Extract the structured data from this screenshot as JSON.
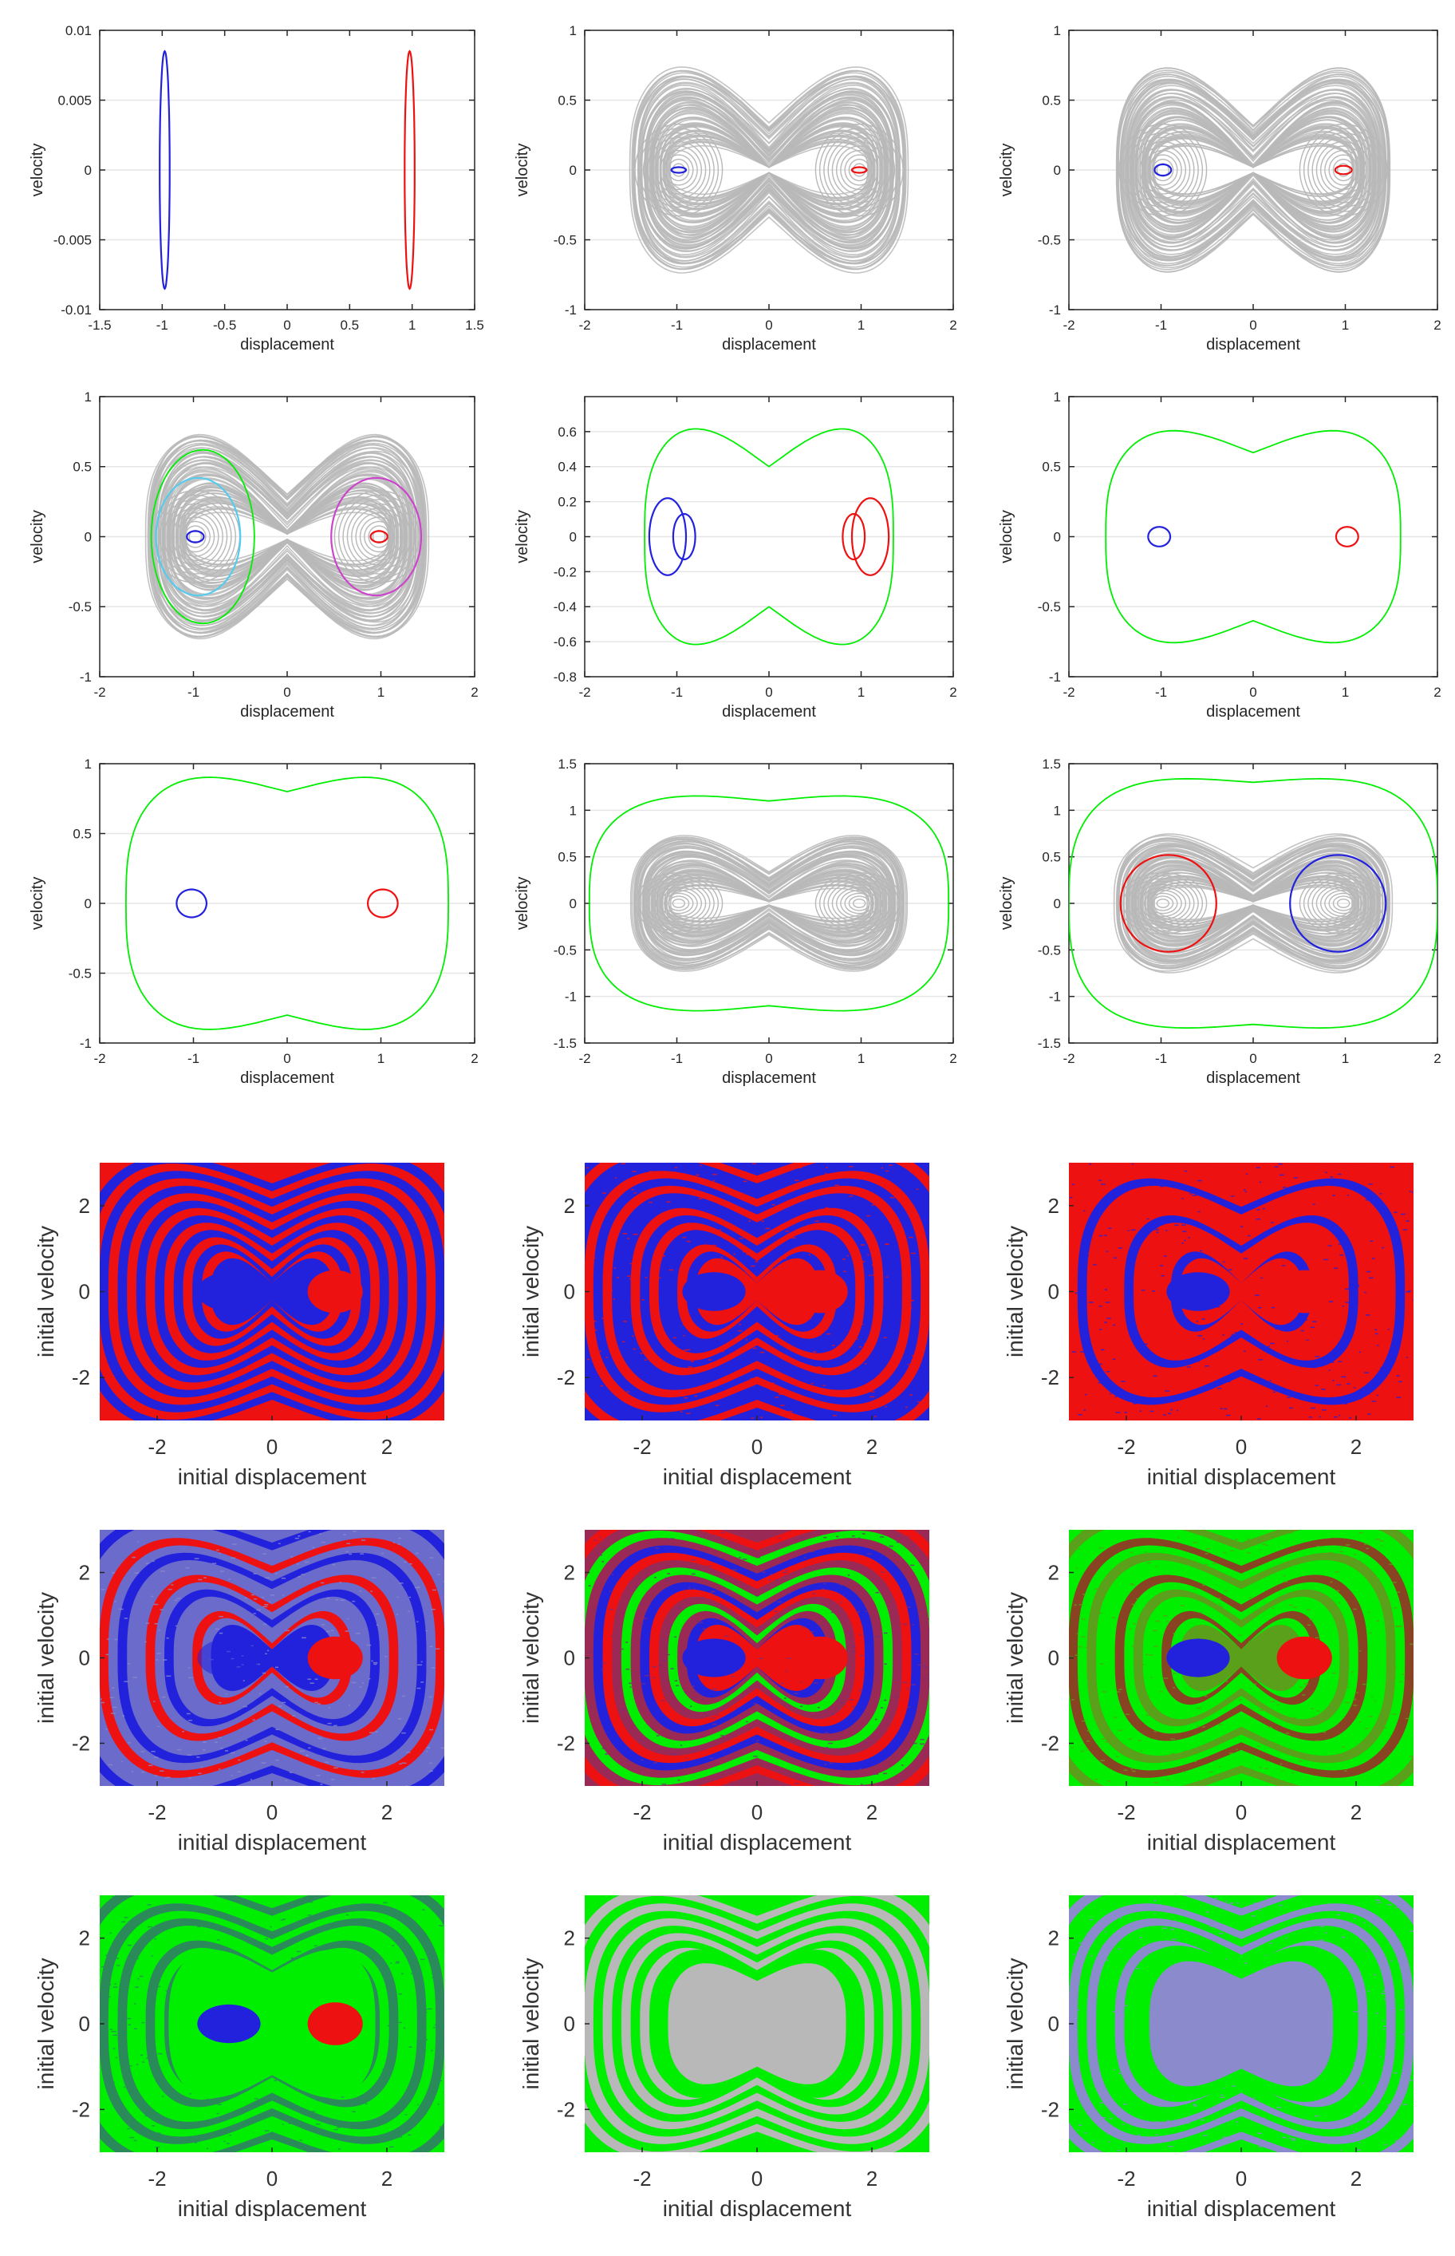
{
  "colors": {
    "blue": "#2222dd",
    "red": "#ee1111",
    "green": "#00ee00",
    "gray": "#b8b8b8",
    "cyan": "#55ccee",
    "magenta": "#cc44cc",
    "axis": "#262626",
    "grid": "#e6e6e6"
  },
  "chart_data": [
    {
      "type": "line",
      "title": "",
      "xlabel": "displacement",
      "ylabel": "velocity",
      "xlim": [
        -1.5,
        1.5
      ],
      "ylim": [
        -0.01,
        0.01
      ],
      "xticks": [
        "-1.5",
        "-1",
        "-0.5",
        "0",
        "0.5",
        "1",
        "1.5"
      ],
      "yticks": [
        "-0.01",
        "-0.005",
        "0",
        "0.005",
        "0.01"
      ],
      "grid": true,
      "series": [
        {
          "color": "blue",
          "kind": "ellipse",
          "center": [
            -0.98,
            0
          ],
          "radius": [
            0.04,
            0.0085
          ]
        },
        {
          "color": "red",
          "kind": "ellipse",
          "center": [
            0.98,
            0
          ],
          "radius": [
            0.04,
            0.0085
          ]
        }
      ]
    },
    {
      "type": "line",
      "title": "",
      "xlabel": "displacement",
      "ylabel": "velocity",
      "xlim": [
        -2,
        2
      ],
      "ylim": [
        -1,
        1
      ],
      "xticks": [
        "-2",
        "-1",
        "0",
        "1",
        "2"
      ],
      "yticks": [
        "-1",
        "-0.5",
        "0",
        "0.5",
        "1"
      ],
      "grid": true,
      "chaos_cloud": true,
      "series": [
        {
          "color": "blue",
          "kind": "ellipse",
          "center": [
            -0.98,
            0
          ],
          "radius": [
            0.08,
            0.02
          ]
        },
        {
          "color": "red",
          "kind": "ellipse",
          "center": [
            0.98,
            0
          ],
          "radius": [
            0.08,
            0.02
          ]
        }
      ]
    },
    {
      "type": "line",
      "title": "",
      "xlabel": "displacement",
      "ylabel": "velocity",
      "xlim": [
        -2,
        2
      ],
      "ylim": [
        -1,
        1
      ],
      "xticks": [
        "-2",
        "-1",
        "0",
        "1",
        "2"
      ],
      "yticks": [
        "-1",
        "-0.5",
        "0",
        "0.5",
        "1"
      ],
      "grid": true,
      "chaos_cloud": true,
      "series": [
        {
          "color": "blue",
          "kind": "ellipse",
          "center": [
            -0.98,
            0
          ],
          "radius": [
            0.09,
            0.04
          ]
        },
        {
          "color": "red",
          "kind": "ellipse",
          "center": [
            0.98,
            0
          ],
          "radius": [
            0.09,
            0.03
          ]
        }
      ]
    },
    {
      "type": "line",
      "title": "",
      "xlabel": "displacement",
      "ylabel": "velocity",
      "xlim": [
        -2,
        2
      ],
      "ylim": [
        -1,
        1
      ],
      "xticks": [
        "-2",
        "-1",
        "0",
        "1",
        "2"
      ],
      "yticks": [
        "-1",
        "-0.5",
        "0",
        "0.5",
        "1"
      ],
      "grid": true,
      "chaos_cloud": true,
      "series": [
        {
          "color": "cyan",
          "kind": "ellipse",
          "center": [
            -0.95,
            0
          ],
          "radius": [
            0.45,
            0.42
          ]
        },
        {
          "color": "green",
          "kind": "ellipse",
          "center": [
            -0.9,
            0
          ],
          "radius": [
            0.55,
            0.62
          ]
        },
        {
          "color": "magenta",
          "kind": "ellipse",
          "center": [
            0.95,
            0
          ],
          "radius": [
            0.48,
            0.42
          ]
        },
        {
          "color": "blue",
          "kind": "ellipse",
          "center": [
            -0.98,
            0
          ],
          "radius": [
            0.09,
            0.04
          ]
        },
        {
          "color": "red",
          "kind": "ellipse",
          "center": [
            0.98,
            0
          ],
          "radius": [
            0.09,
            0.04
          ]
        }
      ]
    },
    {
      "type": "line",
      "title": "",
      "xlabel": "displacement",
      "ylabel": "velocity",
      "xlim": [
        -2,
        2
      ],
      "ylim": [
        -0.8,
        0.8
      ],
      "xticks": [
        "-2",
        "-1",
        "0",
        "1",
        "2"
      ],
      "yticks": [
        "-0.8",
        "-0.6",
        "-0.4",
        "-0.2",
        "0",
        "0.2",
        "0.4",
        "0.6"
      ],
      "grid": true,
      "series": [
        {
          "color": "green",
          "kind": "peanut",
          "xmax": 1.35,
          "vmax": 0.68,
          "vmid": 0.4
        },
        {
          "color": "blue",
          "kind": "ellipse",
          "center": [
            -1.1,
            0
          ],
          "radius": [
            0.2,
            0.22
          ]
        },
        {
          "color": "blue",
          "kind": "ellipse",
          "center": [
            -0.92,
            0
          ],
          "radius": [
            0.12,
            0.13
          ]
        },
        {
          "color": "red",
          "kind": "ellipse",
          "center": [
            1.1,
            0
          ],
          "radius": [
            0.2,
            0.22
          ]
        },
        {
          "color": "red",
          "kind": "ellipse",
          "center": [
            0.92,
            0
          ],
          "radius": [
            0.12,
            0.13
          ]
        }
      ]
    },
    {
      "type": "line",
      "title": "",
      "xlabel": "displacement",
      "ylabel": "velocity",
      "xlim": [
        -2,
        2
      ],
      "ylim": [
        -1,
        1
      ],
      "xticks": [
        "-2",
        "-1",
        "0",
        "1",
        "2"
      ],
      "yticks": [
        "-1",
        "-0.5",
        "0",
        "0.5",
        "1"
      ],
      "grid": true,
      "series": [
        {
          "color": "green",
          "kind": "peanut",
          "xmax": 1.6,
          "vmax": 0.82,
          "vmid": 0.6
        },
        {
          "color": "blue",
          "kind": "ellipse",
          "center": [
            -1.02,
            0
          ],
          "radius": [
            0.12,
            0.07
          ]
        },
        {
          "color": "red",
          "kind": "ellipse",
          "center": [
            1.02,
            0
          ],
          "radius": [
            0.12,
            0.07
          ]
        }
      ]
    },
    {
      "type": "line",
      "title": "",
      "xlabel": "displacement",
      "ylabel": "velocity",
      "xlim": [
        -2,
        2
      ],
      "ylim": [
        -1,
        1
      ],
      "xticks": [
        "-2",
        "-1",
        "0",
        "1",
        "2"
      ],
      "yticks": [
        "-1",
        "-0.5",
        "0",
        "0.5",
        "1"
      ],
      "grid": true,
      "series": [
        {
          "color": "green",
          "kind": "peanut",
          "xmax": 1.72,
          "vmax": 0.96,
          "vmid": 0.8
        },
        {
          "color": "blue",
          "kind": "ellipse",
          "center": [
            -1.02,
            0
          ],
          "radius": [
            0.16,
            0.1
          ]
        },
        {
          "color": "red",
          "kind": "ellipse",
          "center": [
            1.02,
            0
          ],
          "radius": [
            0.16,
            0.1
          ]
        }
      ]
    },
    {
      "type": "line",
      "title": "",
      "xlabel": "displacement",
      "ylabel": "velocity",
      "xlim": [
        -2,
        2
      ],
      "ylim": [
        -1.5,
        1.5
      ],
      "xticks": [
        "-2",
        "-1",
        "0",
        "1",
        "2"
      ],
      "yticks": [
        "-1.5",
        "-1",
        "-0.5",
        "0",
        "0.5",
        "1",
        "1.5"
      ],
      "grid": true,
      "chaos_cloud": true,
      "series": [
        {
          "color": "green",
          "kind": "peanut",
          "xmax": 1.95,
          "vmax": 1.2,
          "vmid": 1.1
        }
      ]
    },
    {
      "type": "line",
      "title": "",
      "xlabel": "displacement",
      "ylabel": "velocity",
      "xlim": [
        -2,
        2
      ],
      "ylim": [
        -1.5,
        1.5
      ],
      "xticks": [
        "-2",
        "-1",
        "0",
        "1",
        "2"
      ],
      "yticks": [
        "-1.5",
        "-1",
        "-0.5",
        "0",
        "0.5",
        "1",
        "1.5"
      ],
      "grid": true,
      "chaos_cloud": true,
      "series": [
        {
          "color": "green",
          "kind": "peanut",
          "xmax": 2.0,
          "vmax": 1.38,
          "vmid": 1.3
        },
        {
          "color": "red",
          "kind": "ellipse",
          "center": [
            -0.92,
            0
          ],
          "radius": [
            0.52,
            0.52
          ]
        },
        {
          "color": "blue",
          "kind": "ellipse",
          "center": [
            0.92,
            0
          ],
          "radius": [
            0.52,
            0.52
          ]
        }
      ]
    },
    {
      "type": "heatmap",
      "xlabel": "initial displacement",
      "ylabel": "initial velocity",
      "xlim": [
        -3,
        3
      ],
      "ylim": [
        -3,
        3
      ],
      "xticks": [
        "-2",
        "0",
        "2"
      ],
      "yticks": [
        "-2",
        "0",
        "2"
      ],
      "palette": [
        "red",
        "blue"
      ],
      "noise": "",
      "islands": true
    },
    {
      "type": "heatmap",
      "xlabel": "initial displacement",
      "ylabel": "initial velocity",
      "xlim": [
        -3,
        3
      ],
      "ylim": [
        -3,
        3
      ],
      "xticks": [
        "-2",
        "0",
        "2"
      ],
      "yticks": [
        "-2",
        "0",
        "2"
      ],
      "palette": [
        "blue",
        "red",
        "blue",
        "red",
        "blue"
      ],
      "noise": "red",
      "islands": true
    },
    {
      "type": "heatmap",
      "xlabel": "initial displacement",
      "ylabel": "initial velocity",
      "xlim": [
        -3,
        3
      ],
      "ylim": [
        -3,
        3
      ],
      "xticks": [
        "-2",
        "0",
        "2"
      ],
      "yticks": [
        "-2",
        "0",
        "2"
      ],
      "palette": [
        "red",
        "red",
        "blue",
        "red",
        "red"
      ],
      "noise": "blue",
      "islands": true
    },
    {
      "type": "heatmap",
      "xlabel": "initial displacement",
      "ylabel": "initial velocity",
      "xlim": [
        -3,
        3
      ],
      "ylim": [
        -3,
        3
      ],
      "xticks": [
        "-2",
        "0",
        "2"
      ],
      "yticks": [
        "-2",
        "0",
        "2"
      ],
      "palette": [
        "#6b6bcc",
        "blue",
        "#6b6bcc",
        "red",
        "#6b6bcc"
      ],
      "noise": "#8a8acc",
      "islands": true,
      "faint_islands": true
    },
    {
      "type": "heatmap",
      "xlabel": "initial displacement",
      "ylabel": "initial velocity",
      "xlim": [
        -3,
        3
      ],
      "ylim": [
        -3,
        3
      ],
      "xticks": [
        "-2",
        "0",
        "2"
      ],
      "yticks": [
        "-2",
        "0",
        "2"
      ],
      "palette": [
        "#9a2a55",
        "red",
        "blue",
        "#9a2a55",
        "green"
      ],
      "noise": "#7a2a7a",
      "islands": true
    },
    {
      "type": "heatmap",
      "xlabel": "initial displacement",
      "ylabel": "initial velocity",
      "xlim": [
        -3,
        3
      ],
      "ylim": [
        -3,
        3
      ],
      "xticks": [
        "-2",
        "0",
        "2"
      ],
      "yticks": [
        "-2",
        "0",
        "2"
      ],
      "palette": [
        "green",
        "#5aa01a",
        "green",
        "#884422",
        "green"
      ],
      "noise": "#5aa01a",
      "islands": true
    },
    {
      "type": "heatmap",
      "xlabel": "initial displacement",
      "ylabel": "initial velocity",
      "xlim": [
        -3,
        3
      ],
      "ylim": [
        -3,
        3
      ],
      "xticks": [
        "-2",
        "0",
        "2"
      ],
      "yticks": [
        "-2",
        "0",
        "2"
      ],
      "palette": [
        "green",
        "#2a8a5a",
        "green",
        "#2a8a5a",
        "green"
      ],
      "noise": "#2a8a5a",
      "islands": true,
      "center_green": true
    },
    {
      "type": "heatmap",
      "xlabel": "initial displacement",
      "ylabel": "initial velocity",
      "xlim": [
        -3,
        3
      ],
      "ylim": [
        -3,
        3
      ],
      "xticks": [
        "-2",
        "0",
        "2"
      ],
      "yticks": [
        "-2",
        "0",
        "2"
      ],
      "palette": [
        "green",
        "gray"
      ],
      "noise": "",
      "islands": false,
      "center_gray": true
    },
    {
      "type": "heatmap",
      "xlabel": "initial displacement",
      "ylabel": "initial velocity",
      "xlim": [
        -3,
        3
      ],
      "ylim": [
        -3,
        3
      ],
      "xticks": [
        "-2",
        "0",
        "2"
      ],
      "yticks": [
        "-2",
        "0",
        "2"
      ],
      "palette": [
        "green",
        "#8a8acc",
        "green",
        "#8a8acc",
        "green"
      ],
      "noise": "#8a8acc",
      "islands": false,
      "center_noise": true
    }
  ]
}
